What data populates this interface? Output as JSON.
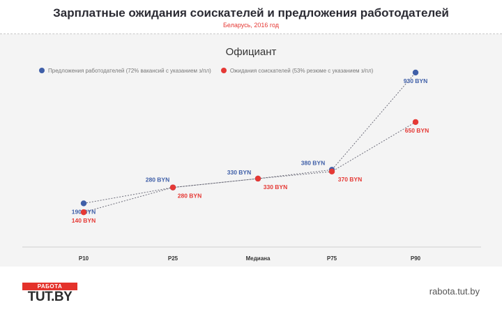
{
  "header": {
    "title": "Зарплатные ожидания соискателей и предложения  работодателей",
    "subtitle": "Беларусь, 2016 год"
  },
  "chart_data": {
    "type": "line",
    "title": "Официант",
    "categories": [
      "P10",
      "P25",
      "Медиана",
      "P75",
      "P90"
    ],
    "series": [
      {
        "name": "Предложения работодателей (72% вакансий с указанием з/пл)",
        "color": "#3f5fa8",
        "values": [
          190,
          280,
          330,
          380,
          930
        ],
        "labels": [
          "190 BYN",
          "280 BYN",
          "330 BYN",
          "380 BYN",
          "930 BYN"
        ]
      },
      {
        "name": "Ожидания соискателей (53% резюме с указанием з/пл)",
        "color": "#e53935",
        "values": [
          140,
          280,
          330,
          370,
          650
        ],
        "labels": [
          "140 BYN",
          "280 BYN",
          "330 BYN",
          "370 BYN",
          "650 BYN"
        ]
      }
    ],
    "xlabel": "",
    "ylabel": "",
    "grid": false,
    "legend": "top-left"
  },
  "footer": {
    "logo_top": "РАБОТА",
    "logo_bottom": "TUT.BY",
    "url": "rabota.tut.by"
  }
}
